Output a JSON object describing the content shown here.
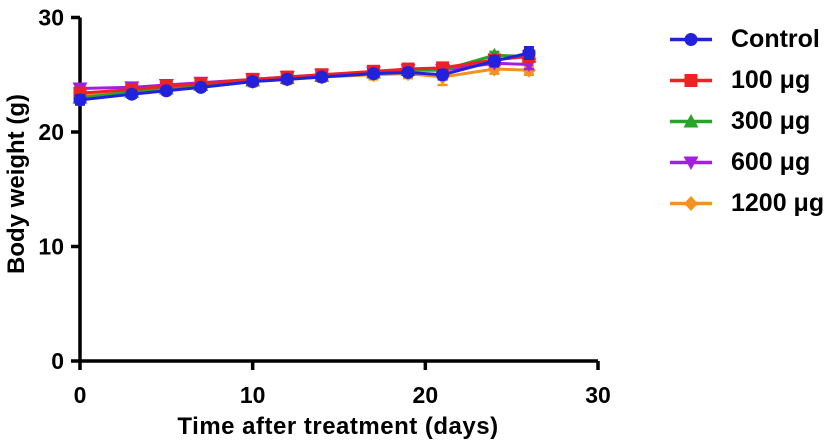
{
  "figure": {
    "background": "#ffffff",
    "axis_color": "#000000",
    "text_color": "#000000"
  },
  "chart_data": {
    "type": "line",
    "title": "",
    "xlabel": "Time after treatment (days)",
    "ylabel": "Body weight (g)",
    "xlim": [
      0,
      30
    ],
    "ylim": [
      0,
      30
    ],
    "xticks": [
      0,
      10,
      20,
      30
    ],
    "yticks": [
      0,
      10,
      20,
      30
    ],
    "grid": false,
    "legend_position": "right",
    "error_bars": "sem",
    "x": [
      0,
      3,
      5,
      7,
      10,
      12,
      14,
      17,
      19,
      21,
      24,
      26
    ],
    "series": [
      {
        "name": "Control",
        "color": "#2222dd",
        "marker": "circle",
        "values": [
          22.8,
          23.3,
          23.6,
          23.9,
          24.4,
          24.6,
          24.8,
          25.1,
          25.2,
          25.0,
          26.2,
          26.9
        ],
        "errors": [
          0.4,
          0.3,
          0.3,
          0.3,
          0.3,
          0.3,
          0.3,
          0.3,
          0.3,
          0.4,
          0.4,
          0.5
        ]
      },
      {
        "name": "100 μg",
        "color": "#ee2222",
        "marker": "square",
        "values": [
          23.4,
          23.7,
          24.0,
          24.2,
          24.6,
          24.8,
          25.0,
          25.3,
          25.5,
          25.6,
          26.3,
          26.6
        ],
        "errors": [
          0.3,
          0.3,
          0.3,
          0.3,
          0.3,
          0.3,
          0.3,
          0.3,
          0.3,
          0.3,
          0.4,
          0.4
        ]
      },
      {
        "name": "300 μg",
        "color": "#28a428",
        "marker": "triangle-up",
        "values": [
          23.0,
          23.5,
          23.8,
          24.1,
          24.5,
          24.7,
          24.9,
          25.2,
          25.4,
          25.4,
          26.7,
          26.6
        ],
        "errors": [
          0.3,
          0.3,
          0.3,
          0.3,
          0.3,
          0.3,
          0.3,
          0.3,
          0.3,
          0.3,
          0.3,
          0.4
        ]
      },
      {
        "name": "600 μg",
        "color": "#a21fe0",
        "marker": "triangle-down",
        "values": [
          23.8,
          23.9,
          24.1,
          24.3,
          24.6,
          24.8,
          25.0,
          25.2,
          25.4,
          25.4,
          26.0,
          25.9
        ],
        "errors": [
          0.3,
          0.3,
          0.3,
          0.3,
          0.3,
          0.3,
          0.3,
          0.3,
          0.3,
          0.3,
          0.3,
          0.4
        ]
      },
      {
        "name": "1200 μg",
        "color": "#f5911e",
        "marker": "diamond",
        "values": [
          23.2,
          23.5,
          23.9,
          24.1,
          24.4,
          24.6,
          24.8,
          25.0,
          25.1,
          24.8,
          25.5,
          25.4
        ],
        "errors": [
          0.7,
          0.4,
          0.4,
          0.4,
          0.4,
          0.4,
          0.4,
          0.4,
          0.4,
          0.7,
          0.4,
          0.4
        ]
      }
    ]
  }
}
